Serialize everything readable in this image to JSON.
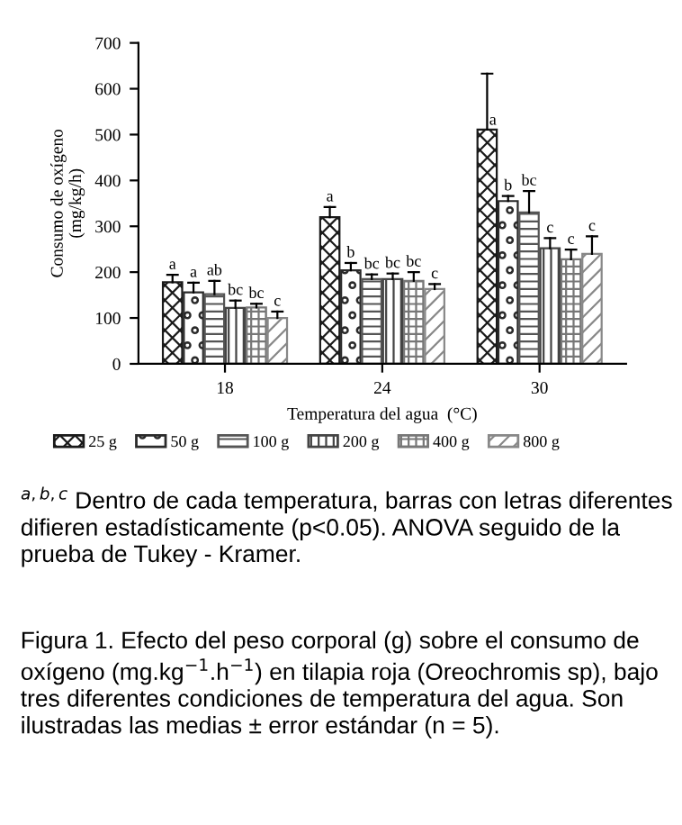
{
  "chart_data": {
    "type": "bar",
    "xlabel": "Temperatura del agua  (°C)",
    "ylabel": "Consumo de oxígeno\n(mg/kg/h)",
    "categories": [
      "18",
      "24",
      "30"
    ],
    "series": [
      {
        "name": "25 g",
        "color": "#1a1a1a",
        "values": [
          178,
          320,
          511
        ],
        "errors": [
          [
            178,
            194
          ],
          [
            320,
            342
          ],
          [
            511,
            633
          ]
        ],
        "value_labels": [
          "a",
          "a",
          "a"
        ]
      },
      {
        "name": "50 g",
        "color": "#2a2a2a",
        "values": [
          156,
          204,
          355
        ],
        "errors": [
          [
            156,
            177
          ],
          [
            204,
            220
          ],
          [
            355,
            366
          ]
        ],
        "value_labels": [
          "a",
          "b",
          "b"
        ]
      },
      {
        "name": "100 g",
        "color": "#555555",
        "values": [
          152,
          185,
          330
        ],
        "errors": [
          [
            152,
            181
          ],
          [
            185,
            195
          ],
          [
            330,
            377
          ]
        ],
        "value_labels": [
          "ab",
          "bc",
          "bc"
        ]
      },
      {
        "name": "200 g",
        "color": "#444444",
        "values": [
          122,
          185,
          252
        ],
        "errors": [
          [
            122,
            138
          ],
          [
            185,
            197
          ],
          [
            252,
            274
          ]
        ],
        "value_labels": [
          "bc",
          "bc",
          "c"
        ]
      },
      {
        "name": "400 g",
        "color": "#777777",
        "values": [
          123,
          181,
          228
        ],
        "errors": [
          [
            123,
            131
          ],
          [
            181,
            200
          ],
          [
            228,
            249
          ]
        ],
        "value_labels": [
          "bc",
          "bc",
          "c"
        ]
      },
      {
        "name": "800 g",
        "color": "#888888",
        "values": [
          100,
          163,
          240
        ],
        "errors": [
          [
            100,
            114
          ],
          [
            163,
            174
          ],
          [
            240,
            278
          ]
        ],
        "value_labels": [
          "c",
          "c",
          "c"
        ]
      }
    ],
    "ylim": [
      0,
      700
    ],
    "yticks": [
      0,
      100,
      200,
      300,
      400,
      500,
      600,
      700
    ],
    "grid": false,
    "legend": "bottom",
    "annotations": [
      "$^{a,b,c}$ Dentro de cada temperatura, barras con letras diferentes difieren estadísticamente (p<0.05). ANOVA seguido de la prueba de Tukey - Kramer.",
      "Figura 1. Efecto del peso corporal (g) sobre el consumo de oxígeno (mg.kg$^{−1}$.h$^{−1}$) en tilapia roja (Oreochromis sp), bajo tres diferentes condiciones de temperatura del agua. Son ilustradas las medias ± error estándar (n = 5)."
    ]
  }
}
